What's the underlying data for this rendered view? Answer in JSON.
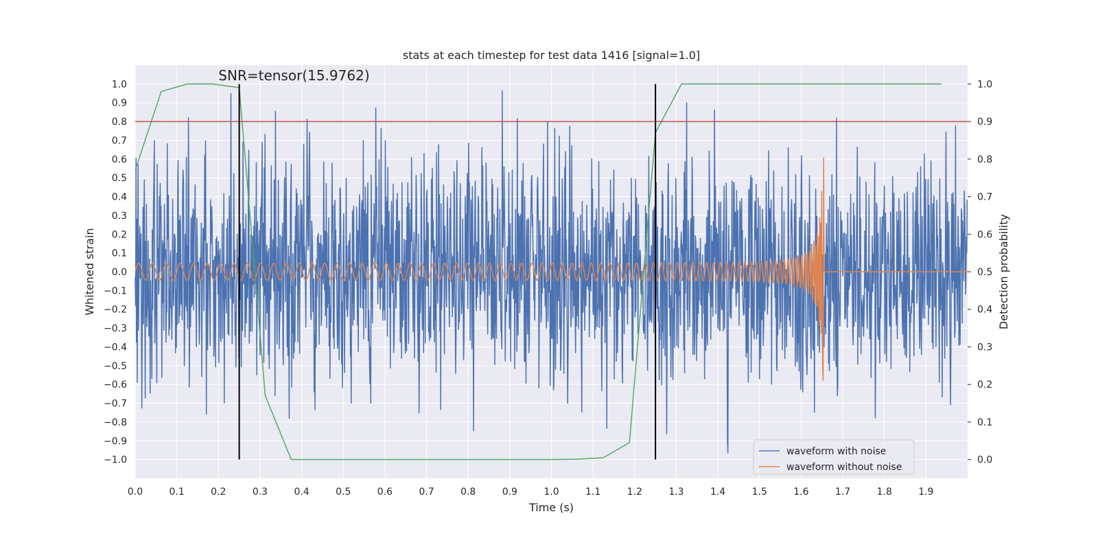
{
  "chart_data": {
    "type": "line",
    "title": "stats at each timestep for test data 1416 [signal=1.0]",
    "xlabel": "Time (s)",
    "ylabel": "Whitened strain",
    "ylabel_right": "Detection probability",
    "xlim": [
      0.0,
      2.0
    ],
    "ylim": [
      -1.1,
      1.1
    ],
    "ylim_right": [
      -0.05,
      1.05
    ],
    "x_ticks": [
      0.0,
      0.1,
      0.2,
      0.3,
      0.4,
      0.5,
      0.6,
      0.7,
      0.8,
      0.9,
      1.0,
      1.1,
      1.2,
      1.3,
      1.4,
      1.5,
      1.6,
      1.7,
      1.8,
      1.9
    ],
    "x_tick_labels": [
      "0.0",
      "0.1",
      "0.2",
      "0.3",
      "0.4",
      "0.5",
      "0.6",
      "0.7",
      "0.8",
      "0.9",
      "1.0",
      "1.1",
      "1.2",
      "1.3",
      "1.4",
      "1.5",
      "1.6",
      "1.7",
      "1.8",
      "1.9"
    ],
    "y_ticks": [
      1.0,
      0.9,
      0.8,
      0.7,
      0.6,
      0.5,
      0.4,
      0.3,
      0.2,
      0.1,
      0.0,
      -0.1,
      -0.2,
      -0.3,
      -0.4,
      -0.5,
      -0.6,
      -0.7,
      -0.8,
      -0.9,
      -1.0
    ],
    "y_tick_labels": [
      "1.0",
      "0.9",
      "0.8",
      "0.7",
      "0.6",
      "0.5",
      "0.4",
      "0.3",
      "0.2",
      "0.1",
      "0.0",
      "−0.1",
      "−0.2",
      "−0.3",
      "−0.4",
      "−0.5",
      "−0.6",
      "−0.7",
      "−0.8",
      "−0.9",
      "−1.0"
    ],
    "y_right_ticks": [
      1.0,
      0.9,
      0.8,
      0.7,
      0.6,
      0.5,
      0.4,
      0.3,
      0.2,
      0.1,
      0.0
    ],
    "y_right_tick_labels": [
      "1.0",
      "0.9",
      "0.8",
      "0.7",
      "0.6",
      "0.5",
      "0.4",
      "0.3",
      "0.2",
      "0.1",
      "0.0"
    ],
    "annotation": "SNR=tensor(15.9762)",
    "annotation_pos": [
      0.2,
      1.02
    ],
    "threshold": {
      "value": 0.9,
      "axis": "right",
      "color": "#c44e52"
    },
    "vlines": [
      {
        "x": 0.25,
        "y_from": 0.0,
        "y_to": 1.0,
        "axis": "right",
        "color": "#000000"
      },
      {
        "x": 1.25,
        "y_from": 0.0,
        "y_to": 1.0,
        "axis": "right",
        "color": "#000000"
      }
    ],
    "series": [
      {
        "name": "waveform with noise",
        "color": "#4c72b0",
        "axis": "left",
        "kind": "noise",
        "generator": {
          "seed": 1416,
          "n_points": 2000,
          "std": 0.3,
          "range": [
            -1.0,
            1.0
          ],
          "t_end": 2.0
        },
        "in_legend": true
      },
      {
        "name": "waveform without noise",
        "color": "#dd8452",
        "axis": "left",
        "kind": "chirp",
        "generator": {
          "t_merge": 1.655,
          "t_end": 2.0,
          "amp_start": 0.045,
          "amp_peak": 0.75,
          "freq_start": 15,
          "freq_end": 140,
          "n_points": 1700
        },
        "in_legend": true
      },
      {
        "name": "detection probability",
        "color": "#55a868",
        "axis": "right",
        "kind": "line",
        "x": [
          0.0,
          0.0625,
          0.125,
          0.1875,
          0.25,
          0.3125,
          0.375,
          0.4375,
          0.5,
          0.5625,
          0.625,
          0.6875,
          0.75,
          0.8125,
          0.875,
          0.9375,
          1.0,
          1.0625,
          1.125,
          1.1875,
          1.25,
          1.3125,
          1.375,
          1.4375,
          1.5,
          1.5625,
          1.625,
          1.6875,
          1.75,
          1.8125,
          1.875,
          1.9375
        ],
        "y": [
          0.77,
          0.98,
          1.0,
          1.0,
          0.99,
          0.17,
          0.0,
          0.0,
          0.0,
          0.0,
          0.0,
          0.0,
          0.0,
          0.0,
          0.0,
          0.0,
          0.0,
          0.001,
          0.005,
          0.045,
          0.87,
          1.0,
          1.0,
          1.0,
          1.0,
          1.0,
          1.0,
          1.0,
          1.0,
          1.0,
          1.0,
          1.0
        ],
        "in_legend": false
      }
    ],
    "legend_position": "lower-right",
    "grid": true
  }
}
